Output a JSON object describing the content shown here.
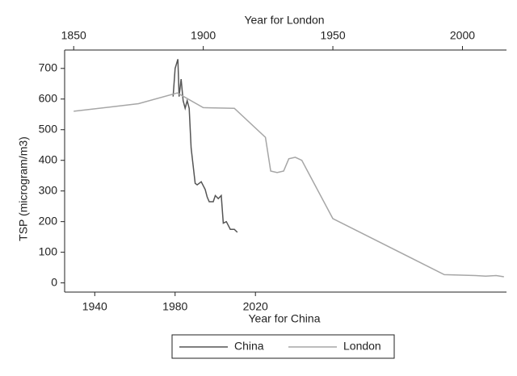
{
  "chart_data": {
    "type": "line",
    "y_label": "TSP (microgram/m3)",
    "x_label": "Year for China",
    "x2_label": "Year for London",
    "xlim": [
      1925,
      2145
    ],
    "xticks": [
      1940,
      1980,
      2020
    ],
    "x2lim": [
      1846.5,
      2017
    ],
    "x2ticks": [
      1850,
      1900,
      1950,
      2000
    ],
    "ylim": [
      -30,
      760
    ],
    "yticks": [
      0,
      100,
      200,
      300,
      400,
      500,
      600,
      700
    ],
    "grid": false,
    "legend": "bottom",
    "series": [
      {
        "name": "China",
        "color": "#555555",
        "xaxis": "x",
        "x": [
          1979,
          1980,
          1981.4,
          1982,
          1983,
          1984,
          1985,
          1986,
          1987,
          1988,
          1990,
          1991,
          1993,
          1995,
          1996,
          1997,
          1999,
          2000,
          2001.5,
          2003,
          2004,
          2005.5,
          2007.5,
          2009.5,
          2011
        ],
        "values": [
          608,
          700,
          730,
          608,
          665,
          595,
          570,
          595,
          570,
          440,
          325,
          320,
          330,
          305,
          280,
          265,
          265,
          285,
          275,
          285,
          195,
          200,
          175,
          175,
          165
        ]
      },
      {
        "name": "London",
        "color": "#a6a6a6",
        "xaxis": "x2",
        "x": [
          1850,
          1875,
          1890,
          1900,
          1912,
          1924,
          1926,
          1928.5,
          1931,
          1933,
          1935.5,
          1938,
          1950,
          1993,
          2001,
          2005,
          2009,
          2013,
          2016
        ],
        "values": [
          560,
          585,
          620,
          572,
          570,
          475,
          365,
          360,
          365,
          405,
          410,
          400,
          210,
          27,
          25,
          24,
          22,
          24,
          20
        ]
      }
    ]
  }
}
